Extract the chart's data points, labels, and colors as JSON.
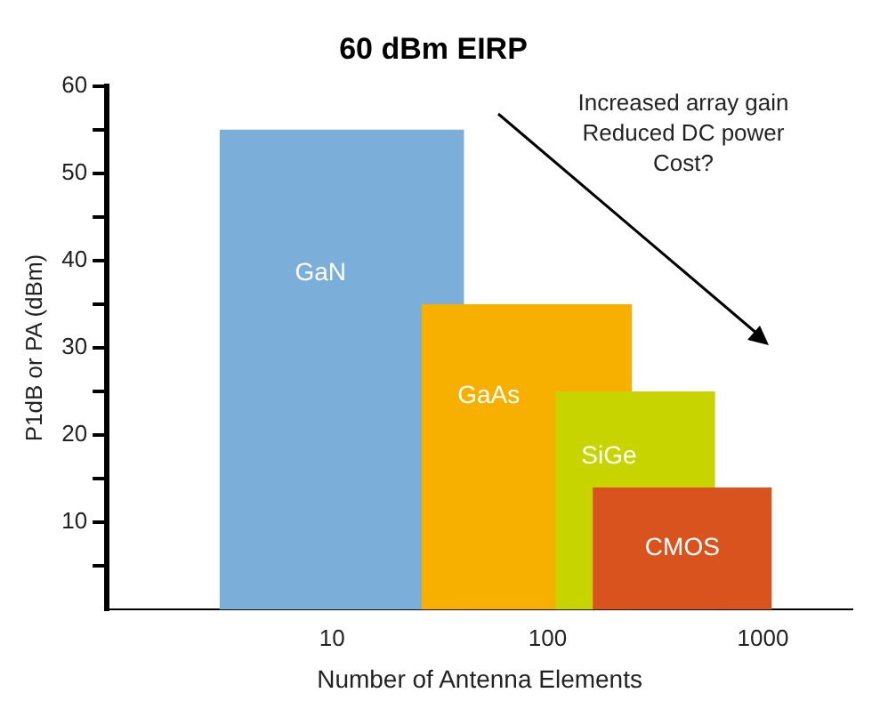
{
  "chart_data": {
    "type": "area",
    "title": "60 dBm EIRP",
    "xlabel": "Number of Antenna Elements",
    "ylabel": "P1dB or PA (dBm)",
    "series": [
      {
        "name": "GaN",
        "color": "#7bafd9",
        "x": [
          3,
          41
        ],
        "values": [
          55,
          55
        ]
      },
      {
        "name": "GaAs",
        "color": "#f7b000",
        "x": [
          26,
          247
        ],
        "values": [
          35,
          35
        ]
      },
      {
        "name": "SiGe",
        "color": "#c8d400",
        "x": [
          109,
          600
        ],
        "values": [
          25,
          25
        ]
      },
      {
        "name": "CMOS",
        "color": "#d9531e",
        "x": [
          162,
          1100
        ],
        "values": [
          14,
          14
        ]
      }
    ],
    "log": "x",
    "xlim": [
      0.9,
      2600
    ],
    "xticks": [
      10,
      100,
      1000
    ],
    "ylim": [
      0,
      60
    ],
    "yticks": [
      {
        "value": 5,
        "label": null
      },
      10,
      {
        "value": 15,
        "label": null
      },
      20,
      {
        "value": 25,
        "label": null
      },
      30,
      {
        "value": 35,
        "label": null
      },
      40,
      {
        "value": 45,
        "label": null
      },
      50,
      {
        "value": 55,
        "label": null
      },
      60
    ],
    "annotations": [
      "Increased array gain",
      "Reduced DC power",
      "Cost?"
    ],
    "grid": false,
    "legend": false
  }
}
